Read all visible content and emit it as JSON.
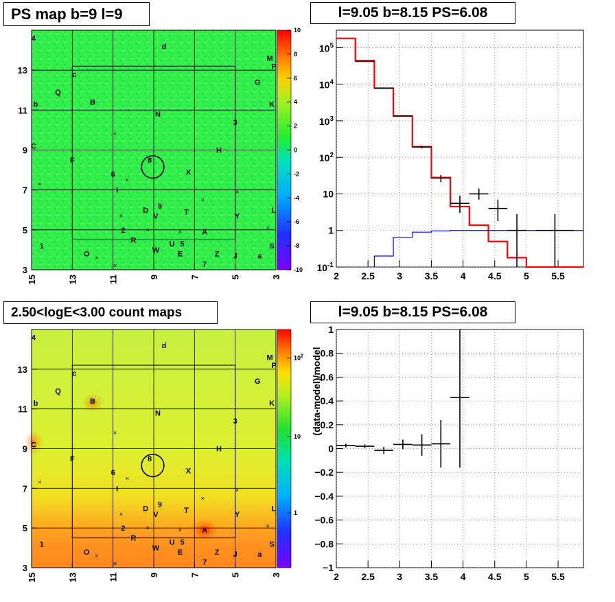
{
  "panels": {
    "ps_map_title": "PS map b=9 l=9",
    "spectrum_title": "l=9.05 b=8.15 PS=6.08",
    "count_map_title": "2.50<logE<3.00 count maps",
    "residual_title": "l=9.05 b=8.15 PS=6.08"
  },
  "sky_maps": {
    "x_ticks": [
      "15",
      "13",
      "11",
      "9",
      "7",
      "5",
      "3"
    ],
    "y_ticks": [
      "13",
      "11",
      "9",
      "7",
      "5",
      "3"
    ],
    "x_range": [
      15,
      3
    ],
    "y_range": [
      3,
      15
    ],
    "source_labels": [
      {
        "t": "4",
        "l": 14.9,
        "b": 14.6
      },
      {
        "t": "d",
        "l": 8.5,
        "b": 14.2
      },
      {
        "t": "M",
        "l": 3.3,
        "b": 13.6
      },
      {
        "t": "P",
        "l": 3.1,
        "b": 13.2
      },
      {
        "t": "c",
        "l": 12.9,
        "b": 12.8
      },
      {
        "t": "G",
        "l": 3.9,
        "b": 12.4
      },
      {
        "t": "Q",
        "l": 13.7,
        "b": 11.9
      },
      {
        "t": "B",
        "l": 12.0,
        "b": 11.4
      },
      {
        "t": "b",
        "l": 14.8,
        "b": 11.3
      },
      {
        "t": "K",
        "l": 3.2,
        "b": 11.3
      },
      {
        "t": "N",
        "l": 8.8,
        "b": 10.8
      },
      {
        "t": "3",
        "l": 5.0,
        "b": 10.4
      },
      {
        "t": "C",
        "l": 14.9,
        "b": 9.2
      },
      {
        "t": "H",
        "l": 5.8,
        "b": 9.0
      },
      {
        "t": "F",
        "l": 13.0,
        "b": 8.5
      },
      {
        "t": "8",
        "l": 9.2,
        "b": 8.5
      },
      {
        "t": "6",
        "l": 11.0,
        "b": 7.8
      },
      {
        "t": "X",
        "l": 7.3,
        "b": 7.9
      },
      {
        "t": "I",
        "l": 10.8,
        "b": 7.0
      },
      {
        "t": "9",
        "l": 8.7,
        "b": 6.2
      },
      {
        "t": "D",
        "l": 9.4,
        "b": 6.0
      },
      {
        "t": "V",
        "l": 8.9,
        "b": 5.7
      },
      {
        "t": "T",
        "l": 7.4,
        "b": 5.9
      },
      {
        "t": "L",
        "l": 3.1,
        "b": 6.0
      },
      {
        "t": "Y",
        "l": 4.9,
        "b": 5.7
      },
      {
        "t": "2",
        "l": 10.5,
        "b": 5.0
      },
      {
        "t": "A",
        "l": 6.5,
        "b": 4.9
      },
      {
        "t": "R",
        "l": 10.0,
        "b": 4.5
      },
      {
        "t": "5",
        "l": 7.6,
        "b": 4.3
      },
      {
        "t": "U",
        "l": 8.1,
        "b": 4.3
      },
      {
        "t": "W",
        "l": 8.9,
        "b": 4.0
      },
      {
        "t": "S",
        "l": 3.2,
        "b": 4.2
      },
      {
        "t": "1",
        "l": 14.5,
        "b": 4.2
      },
      {
        "t": "E",
        "l": 7.7,
        "b": 3.8
      },
      {
        "t": "Z",
        "l": 5.9,
        "b": 3.8
      },
      {
        "t": "J",
        "l": 5.0,
        "b": 3.7
      },
      {
        "t": "a",
        "l": 3.8,
        "b": 3.7
      },
      {
        "t": "O",
        "l": 12.3,
        "b": 3.8
      },
      {
        "t": "7",
        "l": 6.5,
        "b": 3.3
      }
    ],
    "marker_positions": [
      {
        "l": 10.9,
        "b": 9.8
      },
      {
        "l": 14.6,
        "b": 7.3
      },
      {
        "l": 10.3,
        "b": 7.5
      },
      {
        "l": 4.9,
        "b": 6.9
      },
      {
        "l": 6.6,
        "b": 6.5
      },
      {
        "l": 10.6,
        "b": 5.7
      },
      {
        "l": 3.4,
        "b": 5.1
      },
      {
        "l": 9.3,
        "b": 5.0
      },
      {
        "l": 7.7,
        "b": 4.9
      },
      {
        "l": 11.8,
        "b": 3.6
      },
      {
        "l": 10.9,
        "b": 3.2
      }
    ],
    "marked_source": {
      "l": 9.05,
      "b": 8.15,
      "radius_deg": 0.55
    }
  },
  "ps_colorbar": {
    "min": -10,
    "max": 10,
    "ticks": [
      "10",
      "8",
      "6",
      "4",
      "2",
      "0",
      "-2",
      "-4",
      "-6",
      "-8",
      "-10"
    ]
  },
  "count_colorbar": {
    "ticks": [
      "10^2",
      "10",
      "1"
    ],
    "tick_base": "10",
    "tick_exp": "2"
  },
  "chart_data": [
    {
      "type": "line",
      "panel": "spectrum",
      "title": "l=9.05 b=8.15 PS=6.08",
      "xlabel": "",
      "ylabel": "",
      "xlim": [
        2,
        5.9
      ],
      "ylim": [
        0.1,
        300000
      ],
      "y_scale": "log",
      "grid": true,
      "x_ticks": [
        "2",
        "2.5",
        "3",
        "3.5",
        "4",
        "4.5",
        "5",
        "5.5"
      ],
      "y_ticks": [
        {
          "base": "10",
          "exp": "5",
          "v": 100000
        },
        {
          "base": "10",
          "exp": "4",
          "v": 10000
        },
        {
          "base": "10",
          "exp": "3",
          "v": 1000
        },
        {
          "base": "10",
          "exp": "2",
          "v": 100
        },
        {
          "base": "",
          "exp": "",
          "t": "10",
          "v": 10
        },
        {
          "base": "",
          "exp": "",
          "t": "1",
          "v": 1
        },
        {
          "base": "10",
          "exp": "-1",
          "v": 0.1
        }
      ],
      "data_points": [
        {
          "x": 2.45,
          "xerr": 0.15,
          "y": 42000,
          "yerr": [
            200,
            200
          ]
        },
        {
          "x": 2.75,
          "xerr": 0.15,
          "y": 7800,
          "yerr": [
            90,
            90
          ]
        },
        {
          "x": 3.05,
          "xerr": 0.15,
          "y": 1350,
          "yerr": [
            40,
            40
          ]
        },
        {
          "x": 3.35,
          "xerr": 0.15,
          "y": 190,
          "yerr": [
            15,
            15
          ]
        },
        {
          "x": 3.65,
          "xerr": 0.15,
          "y": 27,
          "yerr": [
            6,
            6
          ]
        },
        {
          "x": 3.95,
          "xerr": 0.15,
          "y": 5.5,
          "yerr": [
            2.5,
            3.5
          ]
        },
        {
          "x": 4.25,
          "xerr": 0.15,
          "y": 10,
          "yerr": [
            3,
            4
          ]
        },
        {
          "x": 4.55,
          "xerr": 0.15,
          "y": 4,
          "yerr": [
            2.2,
            3
          ]
        },
        {
          "x": 4.85,
          "xerr": 0.15,
          "y": 1,
          "yerr": [
            0.95,
            1.8
          ]
        },
        {
          "x": 5.45,
          "xerr": 0.3,
          "y": 1,
          "yerr": [
            0.95,
            1.8
          ]
        }
      ],
      "series": [
        {
          "name": "",
          "color": "#ff0000",
          "step_edges": [
            2.0,
            2.3,
            2.6,
            2.9,
            3.2,
            3.5,
            3.8,
            4.1,
            4.4,
            4.7,
            5.0,
            5.9
          ],
          "values": [
            180000,
            44000,
            7800,
            1350,
            195,
            28,
            4.5,
            1.4,
            0.5,
            0.18,
            0.1
          ]
        },
        {
          "name": "",
          "color": "#0000ff",
          "step_edges": [
            2.6,
            2.9,
            3.2,
            3.5,
            3.8,
            4.1,
            4.4,
            4.7,
            5.0,
            5.9
          ],
          "values": [
            0.2,
            0.65,
            0.9,
            0.97,
            1.0,
            1.0,
            1.0,
            1.0,
            1.0
          ]
        }
      ]
    },
    {
      "type": "scatter",
      "panel": "residual",
      "title": "l=9.05 b=8.15 PS=6.08",
      "xlabel": "",
      "ylabel": "(data-model)/model",
      "xlim": [
        2,
        5.9
      ],
      "ylim": [
        -1,
        1
      ],
      "grid": true,
      "x_ticks": [
        "2",
        "2.5",
        "3",
        "3.5",
        "4",
        "4.5",
        "5",
        "5.5"
      ],
      "y_ticks": [
        "1",
        "0.8",
        "0.6",
        "0.4",
        "0.2",
        "0",
        "−0.2",
        "−0.4",
        "−0.6",
        "−0.8",
        "−1"
      ],
      "data_points": [
        {
          "x": 2.15,
          "xerr": 0.15,
          "y": 0.025,
          "yerr": 0.015
        },
        {
          "x": 2.45,
          "xerr": 0.15,
          "y": 0.02,
          "yerr": 0.015
        },
        {
          "x": 2.75,
          "xerr": 0.15,
          "y": -0.015,
          "yerr": 0.03
        },
        {
          "x": 3.05,
          "xerr": 0.15,
          "y": 0.035,
          "yerr": 0.04
        },
        {
          "x": 3.35,
          "xerr": 0.15,
          "y": 0.03,
          "yerr": 0.09
        },
        {
          "x": 3.65,
          "xerr": 0.15,
          "y": 0.04,
          "yerr": 0.2
        },
        {
          "x": 3.95,
          "xerr": 0.15,
          "y": 0.43,
          "yerr": 0.59
        }
      ]
    }
  ]
}
